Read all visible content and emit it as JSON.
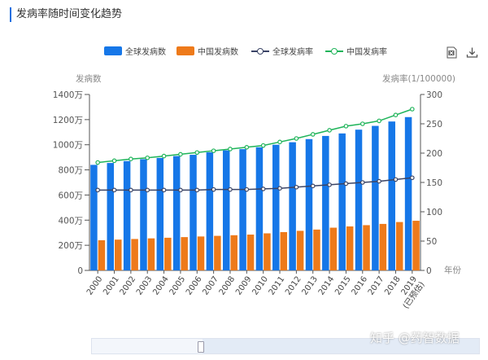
{
  "page": {
    "title": "发病率随时间变化趋势"
  },
  "legend": [
    {
      "label": "全球发病数",
      "kind": "bar",
      "color": "#1677e8"
    },
    {
      "label": "中国发病数",
      "kind": "bar",
      "color": "#ee7a1a"
    },
    {
      "label": "全球发病率",
      "kind": "line",
      "color": "#3a4466"
    },
    {
      "label": "中国发病率",
      "kind": "line",
      "color": "#1fb45a"
    }
  ],
  "toolbar": {
    "export_icon": "excel-export-icon",
    "download_icon": "download-icon"
  },
  "watermark": "知乎 @药智数据",
  "chart_data": {
    "type": "bar",
    "title": "发病率随时间变化趋势",
    "categories": [
      "2000",
      "2001",
      "2002",
      "2003",
      "2004",
      "2005",
      "2006",
      "2007",
      "2008",
      "2009",
      "2010",
      "2011",
      "2012",
      "2013",
      "2014",
      "2015",
      "2016",
      "2017",
      "2018",
      "2019\n(已预估)"
    ],
    "y_left": {
      "label": "发病数",
      "ylim": [
        0,
        14000000
      ],
      "ticks": [
        "0",
        "200万",
        "400万",
        "600万",
        "800万",
        "1000万",
        "1200万",
        "1400万"
      ]
    },
    "y_right": {
      "label": "发病率(1/100000)",
      "ylim": [
        0,
        300
      ],
      "ticks": [
        "0",
        "50",
        "100",
        "150",
        "200",
        "250",
        "300"
      ]
    },
    "x_axis_name": "年份",
    "series": [
      {
        "name": "全球发病数",
        "type": "bar",
        "axis": "left",
        "color": "#1677e8",
        "values": [
          8400000,
          8550000,
          8700000,
          8850000,
          8950000,
          9100000,
          9200000,
          9400000,
          9550000,
          9650000,
          9800000,
          10000000,
          10200000,
          10450000,
          10700000,
          10900000,
          11200000,
          11500000,
          11850000,
          12200000
        ]
      },
      {
        "name": "中国发病数",
        "type": "bar",
        "axis": "left",
        "color": "#ee7a1a",
        "values": [
          2400000,
          2450000,
          2500000,
          2550000,
          2600000,
          2650000,
          2700000,
          2750000,
          2800000,
          2850000,
          2950000,
          3050000,
          3150000,
          3250000,
          3400000,
          3500000,
          3600000,
          3700000,
          3850000,
          3950000
        ]
      },
      {
        "name": "全球发病率",
        "type": "line",
        "axis": "right",
        "color": "#3a4466",
        "values": [
          137,
          137,
          137,
          137,
          137,
          137,
          137,
          138,
          138,
          138,
          139,
          140,
          142,
          144,
          146,
          148,
          150,
          152,
          155,
          158
        ]
      },
      {
        "name": "中国发病率",
        "type": "line",
        "axis": "right",
        "color": "#1fb45a",
        "values": [
          184,
          187,
          190,
          192,
          195,
          198,
          201,
          204,
          207,
          210,
          213,
          219,
          225,
          232,
          239,
          246,
          250,
          255,
          265,
          275
        ]
      }
    ],
    "grid": false,
    "legend_position": "top"
  }
}
